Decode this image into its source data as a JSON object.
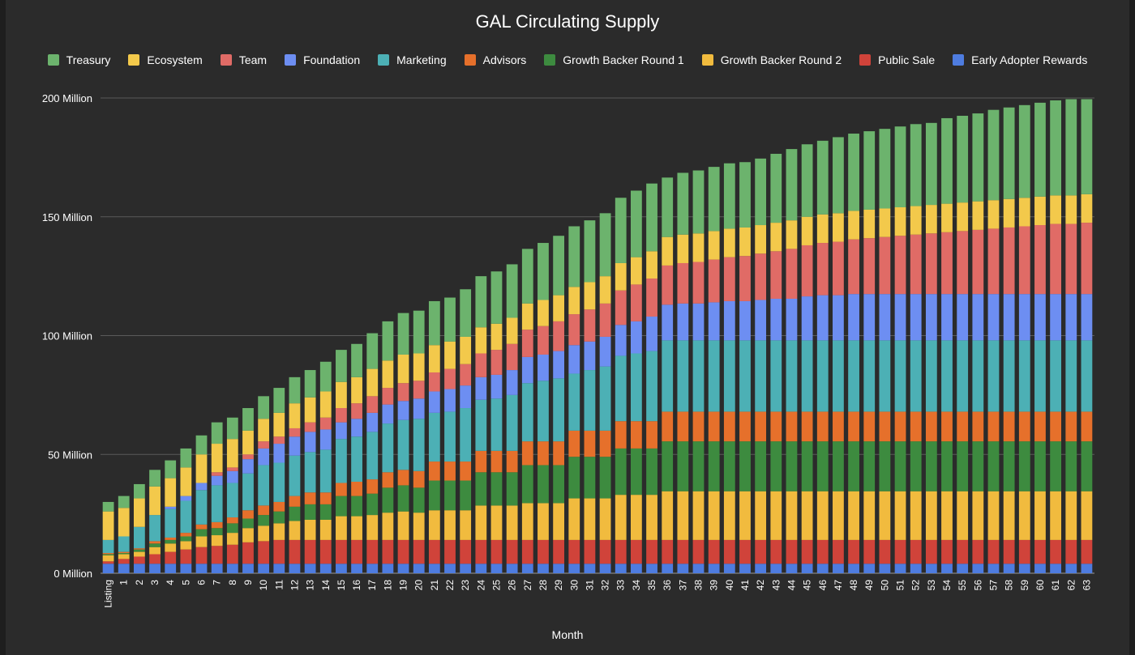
{
  "chart_data": {
    "type": "bar",
    "stacked": true,
    "title": "GAL Circulating Supply",
    "xlabel": "Month",
    "ylabel": "",
    "ylim": [
      0,
      200000000
    ],
    "yticks": [
      {
        "value": 0,
        "label": "0 Million"
      },
      {
        "value": 50000000,
        "label": "50 Million"
      },
      {
        "value": 100000000,
        "label": "100 Million"
      },
      {
        "value": 150000000,
        "label": "150 Million"
      },
      {
        "value": 200000000,
        "label": "200 Million"
      }
    ],
    "grid": true,
    "legend_position": "top",
    "categories": [
      "Listing",
      "1",
      "2",
      "3",
      "4",
      "5",
      "6",
      "7",
      "8",
      "9",
      "10",
      "11",
      "12",
      "13",
      "14",
      "15",
      "16",
      "17",
      "18",
      "19",
      "20",
      "21",
      "22",
      "23",
      "24",
      "25",
      "26",
      "27",
      "28",
      "29",
      "30",
      "31",
      "32",
      "33",
      "34",
      "35",
      "36",
      "37",
      "38",
      "39",
      "40",
      "41",
      "42",
      "43",
      "44",
      "45",
      "46",
      "47",
      "48",
      "49",
      "50",
      "51",
      "52",
      "53",
      "54",
      "55",
      "56",
      "57",
      "58",
      "59",
      "60",
      "61",
      "62",
      "63"
    ],
    "series": [
      {
        "name": "Early Adopter Rewards",
        "color": "#4e7ce0",
        "values": [
          4000000,
          4000000,
          4000000,
          4000000,
          4000000,
          4000000,
          4000000,
          4000000,
          4000000,
          4000000,
          4000000,
          4000000,
          4000000,
          4000000,
          4000000,
          4000000,
          4000000,
          4000000,
          4000000,
          4000000,
          4000000,
          4000000,
          4000000,
          4000000,
          4000000,
          4000000,
          4000000,
          4000000,
          4000000,
          4000000,
          4000000,
          4000000,
          4000000,
          4000000,
          4000000,
          4000000,
          4000000,
          4000000,
          4000000,
          4000000,
          4000000,
          4000000,
          4000000,
          4000000,
          4000000,
          4000000,
          4000000,
          4000000,
          4000000,
          4000000,
          4000000,
          4000000,
          4000000,
          4000000,
          4000000,
          4000000,
          4000000,
          4000000,
          4000000,
          4000000,
          4000000,
          4000000,
          4000000,
          4000000
        ]
      },
      {
        "name": "Public Sale",
        "color": "#d0433a",
        "values": [
          1000000,
          2000000,
          3000000,
          4000000,
          5000000,
          6000000,
          7000000,
          7500000,
          8000000,
          9000000,
          9500000,
          10000000,
          10000000,
          10000000,
          10000000,
          10000000,
          10000000,
          10000000,
          10000000,
          10000000,
          10000000,
          10000000,
          10000000,
          10000000,
          10000000,
          10000000,
          10000000,
          10000000,
          10000000,
          10000000,
          10000000,
          10000000,
          10000000,
          10000000,
          10000000,
          10000000,
          10000000,
          10000000,
          10000000,
          10000000,
          10000000,
          10000000,
          10000000,
          10000000,
          10000000,
          10000000,
          10000000,
          10000000,
          10000000,
          10000000,
          10000000,
          10000000,
          10000000,
          10000000,
          10000000,
          10000000,
          10000000,
          10000000,
          10000000,
          10000000,
          10000000,
          10000000,
          10000000,
          10000000
        ]
      },
      {
        "name": "Growth Backer Round 2",
        "color": "#f1bb3e",
        "values": [
          2500000,
          2000000,
          2000000,
          3000000,
          3500000,
          3500000,
          4500000,
          4500000,
          5000000,
          6000000,
          6500000,
          7000000,
          8000000,
          8500000,
          8500000,
          10000000,
          10000000,
          10500000,
          11500000,
          12000000,
          11500000,
          12500000,
          12500000,
          12500000,
          14500000,
          14500000,
          14500000,
          15500000,
          15500000,
          15500000,
          17500000,
          17500000,
          17500000,
          19000000,
          19000000,
          19000000,
          20500000,
          20500000,
          20500000,
          20500000,
          20500000,
          20500000,
          20500000,
          20500000,
          20500000,
          20500000,
          20500000,
          20500000,
          20500000,
          20500000,
          20500000,
          20500000,
          20500000,
          20500000,
          20500000,
          20500000,
          20500000,
          20500000,
          20500000,
          20500000,
          20500000,
          20500000,
          20500000,
          20500000
        ]
      },
      {
        "name": "Growth Backer Round 1",
        "color": "#3d8b3f",
        "values": [
          500000,
          500000,
          1000000,
          1500000,
          1500000,
          2000000,
          3000000,
          3000000,
          4000000,
          4000000,
          4500000,
          5000000,
          6000000,
          6500000,
          6500000,
          8500000,
          8500000,
          9000000,
          10500000,
          11000000,
          10500000,
          12500000,
          12500000,
          12500000,
          14000000,
          14000000,
          14000000,
          16000000,
          16000000,
          16000000,
          17500000,
          17500000,
          17500000,
          19500000,
          19500000,
          19500000,
          21000000,
          21000000,
          21000000,
          21000000,
          21000000,
          21000000,
          21000000,
          21000000,
          21000000,
          21000000,
          21000000,
          21000000,
          21000000,
          21000000,
          21000000,
          21000000,
          21000000,
          21000000,
          21000000,
          21000000,
          21000000,
          21000000,
          21000000,
          21000000,
          21000000,
          21000000,
          21000000,
          21000000
        ]
      },
      {
        "name": "Advisors",
        "color": "#e6702b",
        "values": [
          500000,
          500000,
          500000,
          1000000,
          1000000,
          1500000,
          2000000,
          2500000,
          2500000,
          3500000,
          4000000,
          4000000,
          4500000,
          5000000,
          5000000,
          5500000,
          6000000,
          6000000,
          6500000,
          6500000,
          7000000,
          8000000,
          8000000,
          8000000,
          9000000,
          9000000,
          9000000,
          10000000,
          10000000,
          10000000,
          11000000,
          11000000,
          11000000,
          11500000,
          11500000,
          11500000,
          12500000,
          12500000,
          12500000,
          12500000,
          12500000,
          12500000,
          12500000,
          12500000,
          12500000,
          12500000,
          12500000,
          12500000,
          12500000,
          12500000,
          12500000,
          12500000,
          12500000,
          12500000,
          12500000,
          12500000,
          12500000,
          12500000,
          12500000,
          12500000,
          12500000,
          12500000,
          12500000,
          12500000
        ]
      },
      {
        "name": "Marketing",
        "color": "#4cb0b5",
        "values": [
          5500000,
          6500000,
          9000000,
          11000000,
          12000000,
          13500000,
          14500000,
          15500000,
          14500000,
          15500000,
          17000000,
          16500000,
          17000000,
          17000000,
          18000000,
          18500000,
          19000000,
          20000000,
          20500000,
          21000000,
          22000000,
          20500000,
          21000000,
          22500000,
          21500000,
          22000000,
          23500000,
          24500000,
          25500000,
          26500000,
          24000000,
          25500000,
          27000000,
          27500000,
          28500000,
          29500000,
          30000000,
          30000000,
          30000000,
          30000000,
          30000000,
          30000000,
          30000000,
          30000000,
          30000000,
          30000000,
          30000000,
          30000000,
          30000000,
          30000000,
          30000000,
          30000000,
          30000000,
          30000000,
          30000000,
          30000000,
          30000000,
          30000000,
          30000000,
          30000000,
          30000000,
          30000000,
          30000000,
          30000000
        ]
      },
      {
        "name": "Foundation",
        "color": "#6d8ef2",
        "values": [
          0,
          0,
          0,
          0,
          1000000,
          2000000,
          3000000,
          4000000,
          5000000,
          6000000,
          7000000,
          8000000,
          8000000,
          8500000,
          8500000,
          7000000,
          7500000,
          8000000,
          8000000,
          8000000,
          8500000,
          9000000,
          9500000,
          9500000,
          9500000,
          10000000,
          10500000,
          11000000,
          11000000,
          11500000,
          12000000,
          12000000,
          12500000,
          13000000,
          13500000,
          14500000,
          15000000,
          15500000,
          15500000,
          16000000,
          16500000,
          16500000,
          17000000,
          17500000,
          17500000,
          18500000,
          19000000,
          19000000,
          19500000,
          19500000,
          19500000,
          19500000,
          19500000,
          19500000,
          19500000,
          19500000,
          19500000,
          19500000,
          19500000,
          19500000,
          19500000,
          19500000,
          19500000,
          19500000
        ]
      },
      {
        "name": "Team",
        "color": "#e06b66",
        "values": [
          0,
          0,
          0,
          0,
          0,
          0,
          0,
          1500000,
          1500000,
          2000000,
          3000000,
          3000000,
          3500000,
          4000000,
          5000000,
          6000000,
          6500000,
          7000000,
          7000000,
          7500000,
          7500000,
          8000000,
          8500000,
          9000000,
          10000000,
          10500000,
          11000000,
          11500000,
          12000000,
          12500000,
          13000000,
          13500000,
          14000000,
          14500000,
          15500000,
          16000000,
          16500000,
          17000000,
          17500000,
          18000000,
          18500000,
          19000000,
          19500000,
          20000000,
          21000000,
          21500000,
          22000000,
          22500000,
          23000000,
          23500000,
          24000000,
          24500000,
          25000000,
          25500000,
          26000000,
          26500000,
          27000000,
          27500000,
          28000000,
          28500000,
          29000000,
          29500000,
          29500000,
          30000000
        ]
      },
      {
        "name": "Ecosystem",
        "color": "#f3c94b",
        "values": [
          12000000,
          12000000,
          12000000,
          12000000,
          12000000,
          12000000,
          12000000,
          12000000,
          12000000,
          10000000,
          9500000,
          10000000,
          10500000,
          10500000,
          11000000,
          11000000,
          11000000,
          11500000,
          11500000,
          12000000,
          11500000,
          11500000,
          11500000,
          11500000,
          11000000,
          11000000,
          11000000,
          11000000,
          11000000,
          11000000,
          11500000,
          11500000,
          11500000,
          11500000,
          11500000,
          11500000,
          12000000,
          12000000,
          12000000,
          12000000,
          12000000,
          12000000,
          12000000,
          12000000,
          12000000,
          12000000,
          12000000,
          12000000,
          12000000,
          12000000,
          12000000,
          12000000,
          12000000,
          12000000,
          12000000,
          12000000,
          12000000,
          12000000,
          12000000,
          12000000,
          12000000,
          12000000,
          12000000,
          12000000
        ]
      },
      {
        "name": "Treasury",
        "color": "#6cb36d",
        "values": [
          4000000,
          5000000,
          6000000,
          7000000,
          7500000,
          8000000,
          8000000,
          9000000,
          9000000,
          9500000,
          9500000,
          10500000,
          11000000,
          11500000,
          12500000,
          13500000,
          14000000,
          15000000,
          16500000,
          17500000,
          18000000,
          18500000,
          18500000,
          20000000,
          21500000,
          22000000,
          22500000,
          23000000,
          24000000,
          25000000,
          25500000,
          26000000,
          26500000,
          27500000,
          28000000,
          28500000,
          25000000,
          26000000,
          26500000,
          27000000,
          27500000,
          27500000,
          28000000,
          29000000,
          30000000,
          30500000,
          31000000,
          32000000,
          32500000,
          33000000,
          33500000,
          34000000,
          34500000,
          34500000,
          36000000,
          36500000,
          37000000,
          38000000,
          38500000,
          39000000,
          39500000,
          40000000,
          40500000,
          40000000
        ]
      }
    ]
  }
}
